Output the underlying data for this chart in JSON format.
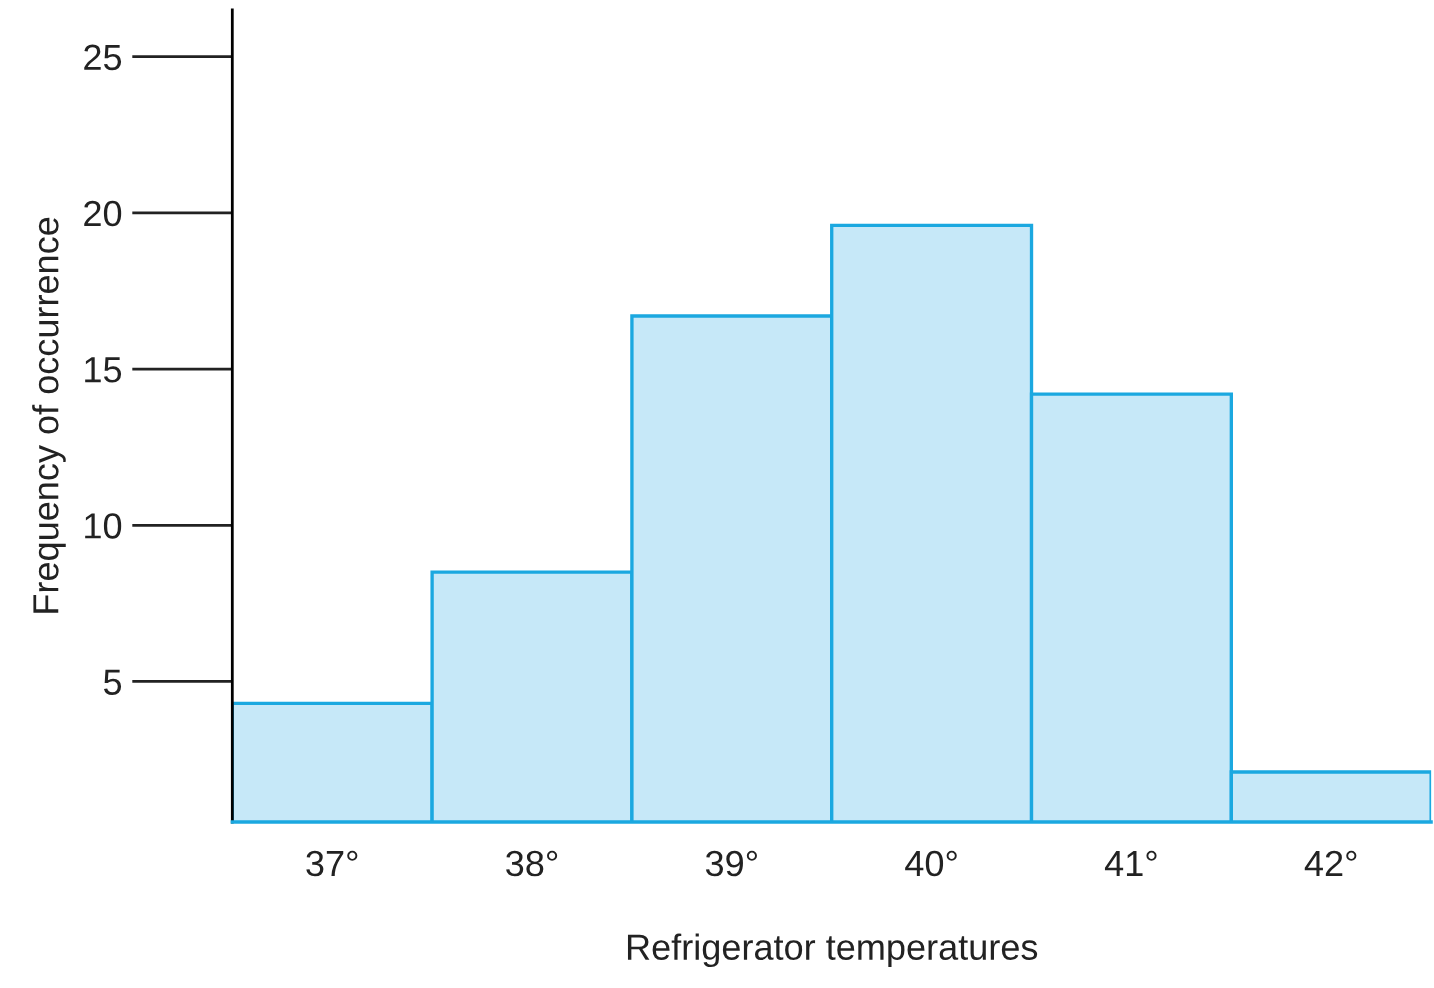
{
  "chart_data": {
    "type": "histogram",
    "xlabel": "Refrigerator temperatures",
    "ylabel": "Frequency of occurrence",
    "bins": [
      36.5,
      37.5,
      38.5,
      39.5,
      40.5,
      41.5,
      42.5
    ],
    "values": [
      4.3,
      8.5,
      16.7,
      19.6,
      14.2,
      2.1
    ],
    "color": "#c6e8f8",
    "xlim": [
      36.5,
      42.5
    ],
    "xticks": [
      {
        "value": 37,
        "label": "37°"
      },
      {
        "value": 38,
        "label": "38°"
      },
      {
        "value": 39,
        "label": "39°"
      },
      {
        "value": 40,
        "label": "40°"
      },
      {
        "value": 41,
        "label": "41°"
      },
      {
        "value": 42,
        "label": "42°"
      }
    ],
    "ylim": [
      0.5,
      26.5
    ],
    "yticks": [
      5,
      10,
      15,
      20,
      25
    ],
    "grid": false
  }
}
